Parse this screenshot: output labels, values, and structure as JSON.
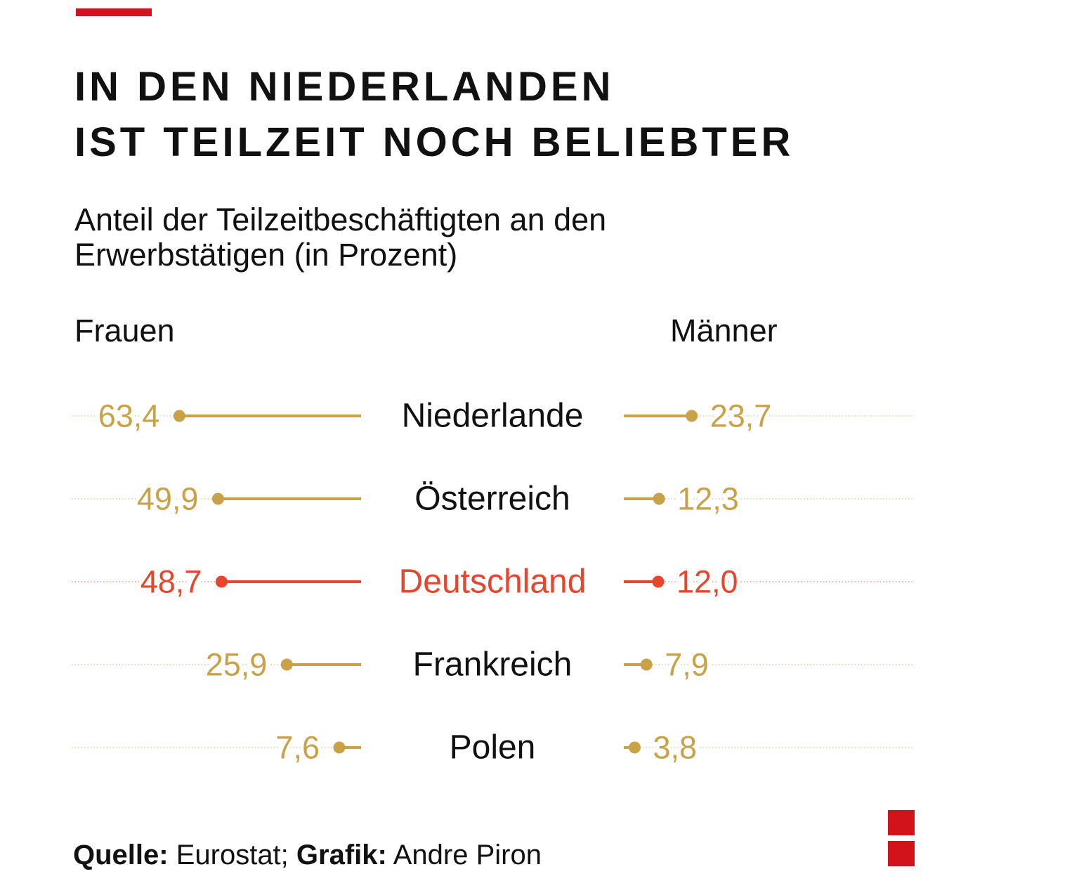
{
  "header": {
    "title_line1": "IN DEN NIEDERLANDEN",
    "title_line2": "IST TEILZEIT NOCH BELIEBTER",
    "subtitle_line1": "Anteil der Teilzeitbeschäftigten an den",
    "subtitle_line2": "Erwerbstätigen (in Prozent)"
  },
  "colors": {
    "accent_red": "#d3131b",
    "default_series": "#c9a248",
    "highlight_series": "#e5462c",
    "text": "#111111"
  },
  "chart_data": {
    "type": "dumbbell",
    "left_label": "Frauen",
    "right_label": "Männer",
    "unit": "Prozent",
    "highlight": "Deutschland",
    "rows": [
      {
        "country": "Niederlande",
        "women": 63.4,
        "women_label": "63,4",
        "men": 23.7,
        "men_label": "23,7"
      },
      {
        "country": "Österreich",
        "women": 49.9,
        "women_label": "49,9",
        "men": 12.3,
        "men_label": "12,3"
      },
      {
        "country": "Deutschland",
        "women": 48.7,
        "women_label": "48,7",
        "men": 12.0,
        "men_label": "12,0"
      },
      {
        "country": "Frankreich",
        "women": 25.9,
        "women_label": "25,9",
        "men": 7.9,
        "men_label": "7,9"
      },
      {
        "country": "Polen",
        "women": 7.6,
        "women_label": "7,6",
        "men": 3.8,
        "men_label": "3,8"
      }
    ]
  },
  "footer": {
    "source_label": "Quelle:",
    "source_value": " Eurostat; ",
    "graphic_label": "Grafik:",
    "graphic_value": " Andre Piron"
  }
}
